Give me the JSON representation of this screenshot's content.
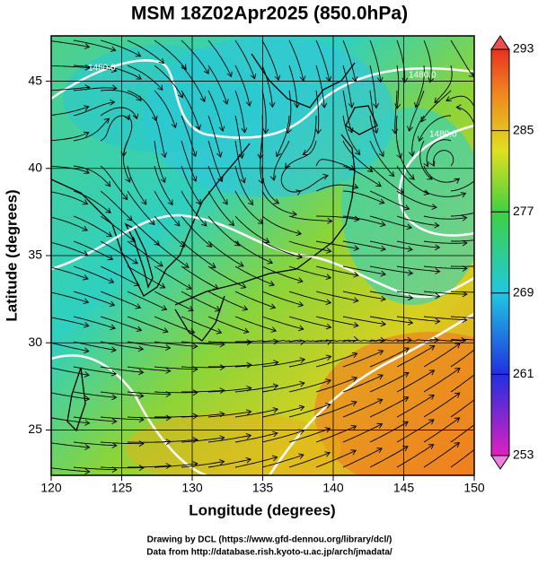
{
  "title": "MSM 18Z02Apr2025 (850.0hPa)",
  "x_axis": {
    "label": "Longitude (degrees)",
    "lim": [
      120,
      150
    ],
    "ticks": [
      120,
      125,
      130,
      135,
      140,
      145,
      150
    ]
  },
  "y_axis": {
    "label": "Latitude  (degrees)",
    "lim": [
      22.4,
      47.6
    ],
    "ticks": [
      25,
      30,
      35,
      40,
      45
    ]
  },
  "colorbar": {
    "lim": [
      253,
      293
    ],
    "ticks": [
      253,
      261,
      269,
      277,
      285,
      293
    ]
  },
  "contour_labels": [
    "1480.0",
    "1480.0",
    "1480.0"
  ],
  "credits": [
    "Drawing by DCL (https://www.gfd-dennou.org/library/dcl/)",
    "Data from http://database.rish.kyoto-u.ac.jp/arch/jmadata/"
  ]
}
